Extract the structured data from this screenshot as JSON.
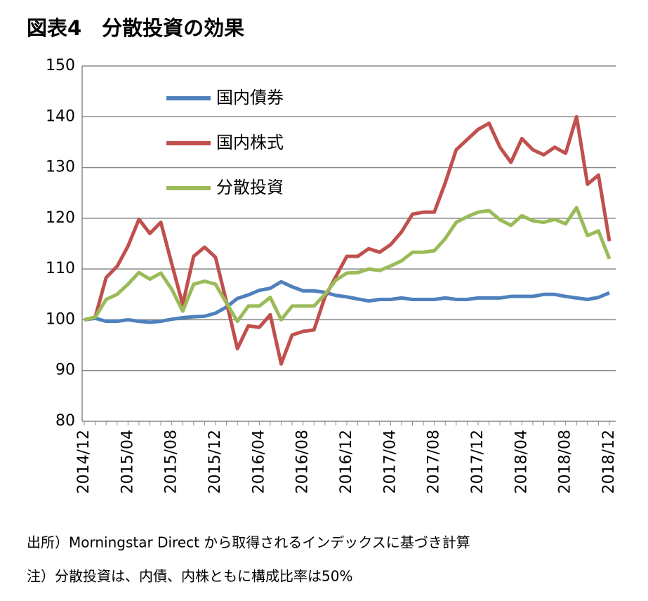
{
  "chart_data": {
    "type": "line",
    "title": "図表4　分散投資の効果",
    "notes": [
      "出所）Morningstar Direct から取得されるインデックスに基づき計算",
      "注）分散投資は、内債、内株ともに構成比率は50%"
    ],
    "categories": [
      "2014/12",
      null,
      null,
      null,
      "2015/04",
      null,
      null,
      null,
      "2015/08",
      null,
      null,
      null,
      "2015/12",
      null,
      null,
      null,
      "2016/04",
      null,
      null,
      null,
      "2016/08",
      null,
      null,
      null,
      "2016/12",
      null,
      null,
      null,
      "2017/04",
      null,
      null,
      null,
      "2017/08",
      null,
      null,
      null,
      "2017/12",
      null,
      null,
      null,
      "2018/04",
      null,
      null,
      null,
      "2018/08",
      null,
      null,
      null,
      "2018/12"
    ],
    "series": [
      {
        "name": "国内債券",
        "color": "#4f81bd",
        "values": [
          100,
          100.3,
          99.7,
          99.7,
          100,
          99.7,
          99.5,
          99.7,
          100.1,
          100.4,
          100.6,
          100.7,
          101.3,
          102.5,
          104.2,
          104.9,
          105.8,
          106.2,
          107.5,
          106.5,
          105.7,
          105.7,
          105.4,
          104.8,
          104.5,
          104.1,
          103.7,
          104,
          104,
          104.3,
          104,
          104,
          104,
          104.3,
          104,
          104,
          104.3,
          104.3,
          104.3,
          104.6,
          104.6,
          104.6,
          105,
          105,
          104.6,
          104.3,
          104.0,
          104.4,
          105.3
        ]
      },
      {
        "name": "国内株式",
        "color": "#c0504d",
        "values": [
          100,
          100.5,
          108.3,
          110.5,
          114.5,
          119.8,
          117,
          119.2,
          111,
          103,
          112.5,
          114.3,
          112.3,
          103.5,
          94.3,
          98.8,
          98.5,
          101,
          91.3,
          97,
          97.7,
          98,
          104.5,
          108.5,
          112.5,
          112.5,
          114,
          113.3,
          114.8,
          117.3,
          120.8,
          121.2,
          121.2,
          127,
          133.5,
          135.5,
          137.5,
          138.7,
          134,
          131,
          135.7,
          133.5,
          132.5,
          134,
          132.8,
          140,
          126.7,
          128.5,
          115.5
        ]
      },
      {
        "name": "分散投資",
        "color": "#9bbb59",
        "values": [
          100,
          100.5,
          104,
          105,
          107,
          109.3,
          108,
          109.2,
          106,
          101.7,
          107,
          107.6,
          107,
          103.3,
          99.7,
          102.7,
          102.7,
          104.4,
          100,
          102.7,
          102.7,
          102.7,
          105,
          107.8,
          109.2,
          109.3,
          110,
          109.7,
          110.6,
          111.6,
          113.3,
          113.3,
          113.6,
          116,
          119.2,
          120.3,
          121.2,
          121.5,
          119.7,
          118.6,
          120.5,
          119.5,
          119.2,
          119.8,
          118.9,
          122.1,
          116.6,
          117.5,
          112
        ]
      }
    ],
    "ylim": [
      80,
      150
    ],
    "yticks": [
      80,
      90,
      100,
      110,
      120,
      130,
      140,
      150
    ],
    "grid": true
  }
}
